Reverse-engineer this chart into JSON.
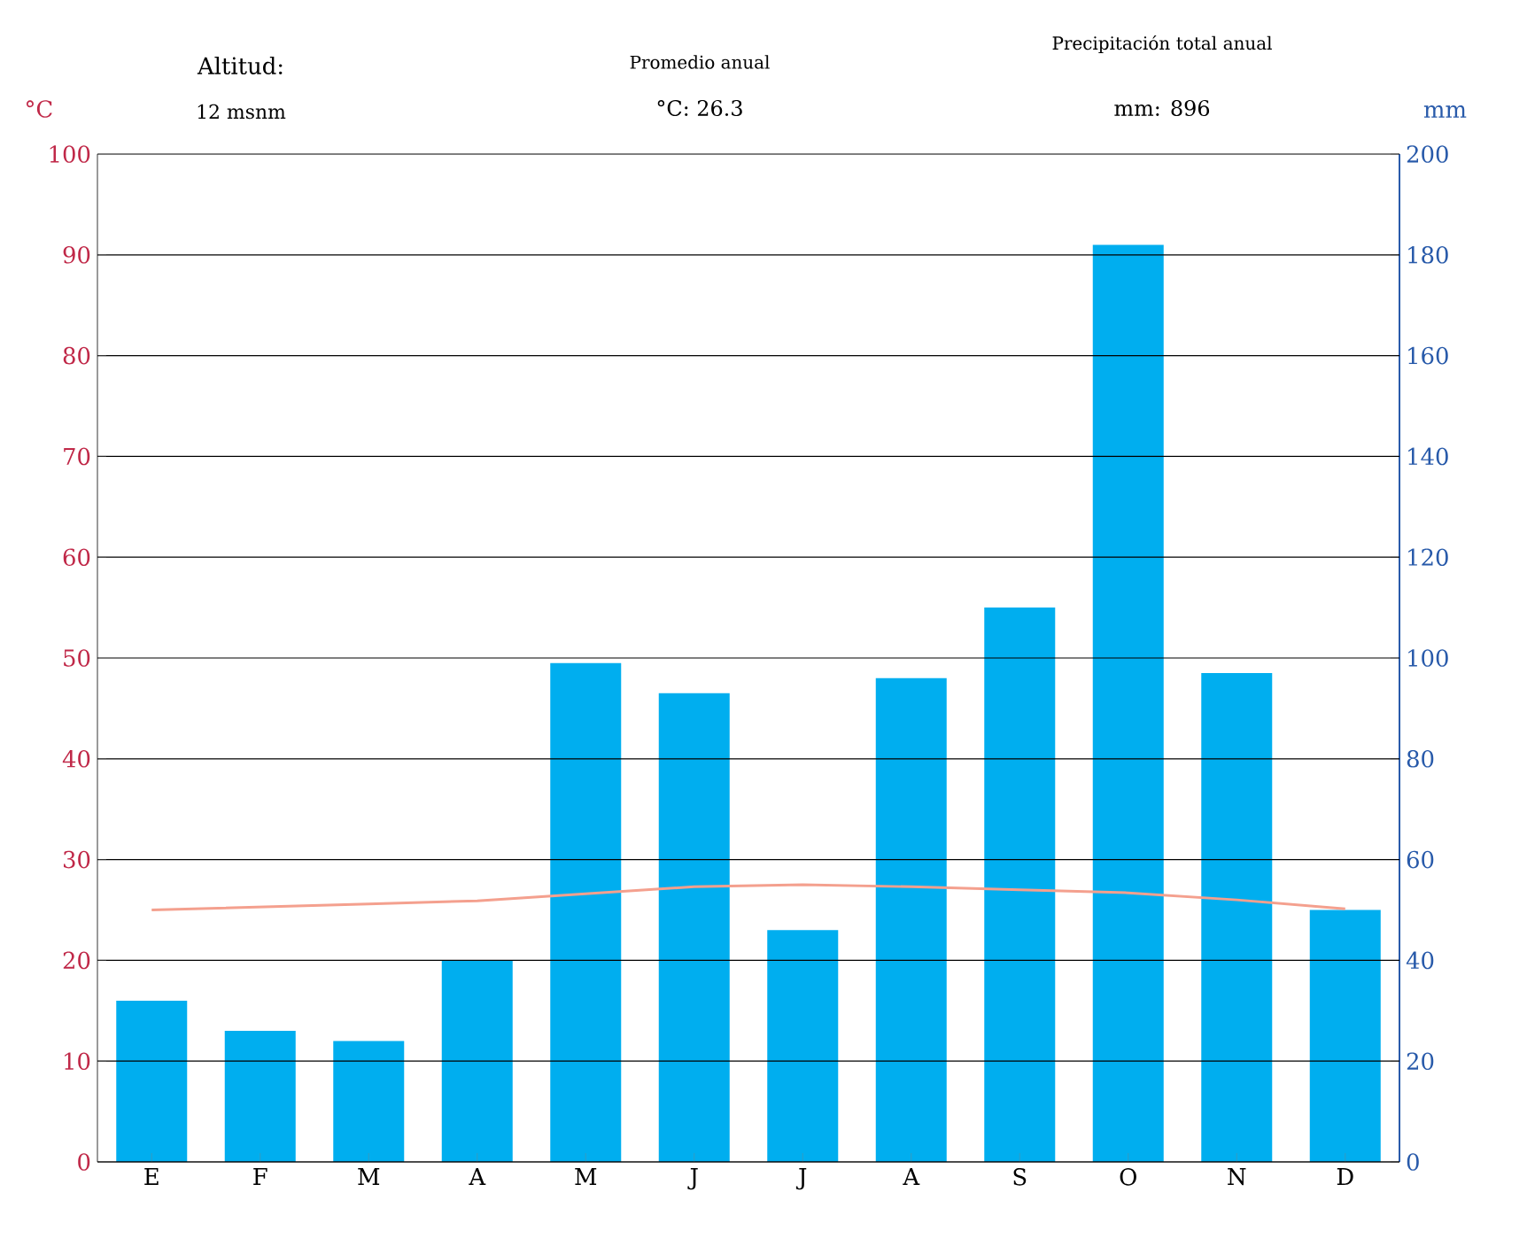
{
  "chart_data": {
    "type": "bar",
    "categories": [
      "E",
      "F",
      "M",
      "A",
      "M",
      "J",
      "J",
      "A",
      "S",
      "O",
      "N",
      "D"
    ],
    "ylabel": "°C",
    "y2label": "mm",
    "series": [
      {
        "axis": "y2",
        "color": "#00aeef",
        "values": [
          32,
          26,
          24,
          40,
          99,
          93,
          46,
          96,
          110,
          182,
          97,
          50
        ]
      },
      {
        "type": "line",
        "axis": "y",
        "color": "#f4a08e",
        "values": [
          25.0,
          25.3,
          25.6,
          25.9,
          26.6,
          27.3,
          27.5,
          27.3,
          27.0,
          26.7,
          26.0,
          25.1
        ]
      }
    ],
    "ylim": [
      0,
      100
    ],
    "yticks": [
      0,
      10,
      20,
      30,
      40,
      50,
      60,
      70,
      80,
      90,
      100
    ],
    "y2lim": [
      0,
      200
    ],
    "y2ticks": [
      0,
      20,
      40,
      60,
      80,
      100,
      120,
      140,
      160,
      180,
      200
    ],
    "grid": "y",
    "marker": "none",
    "line_style": "solid",
    "annotations": [
      "Altitud:",
      "12 msnm",
      "Promedio anual",
      "°C: 26.3",
      "Precipitación total anual",
      "mm: 896"
    ]
  }
}
